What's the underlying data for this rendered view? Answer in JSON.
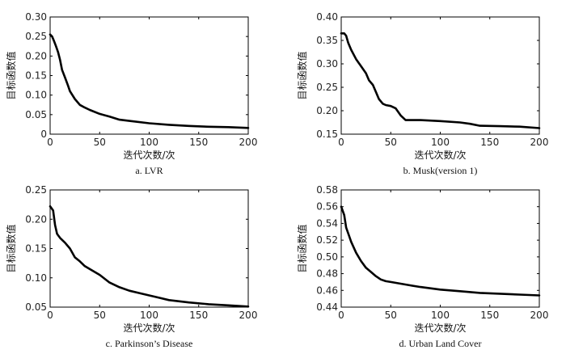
{
  "chart_data": [
    {
      "type": "line",
      "caption": "a. LVR",
      "xlabel": "迭代次数/次",
      "ylabel": "目标函数值",
      "xlim": [
        0,
        200
      ],
      "ylim": [
        0,
        0.3
      ],
      "xticks": [
        "0",
        "50",
        "100",
        "150",
        "200"
      ],
      "yticks": [
        "0",
        "0.05",
        "0.10",
        "0.15",
        "0.20",
        "0.25",
        "0.30"
      ],
      "series": [
        {
          "x": [
            0,
            2,
            4,
            6,
            8,
            10,
            12,
            15,
            18,
            20,
            25,
            30,
            35,
            40,
            50,
            60,
            70,
            80,
            100,
            120,
            140,
            160,
            180,
            200
          ],
          "values": [
            0.255,
            0.25,
            0.238,
            0.225,
            0.21,
            0.19,
            0.165,
            0.145,
            0.125,
            0.11,
            0.09,
            0.075,
            0.068,
            0.062,
            0.052,
            0.045,
            0.037,
            0.034,
            0.028,
            0.024,
            0.021,
            0.019,
            0.018,
            0.016
          ]
        }
      ]
    },
    {
      "type": "line",
      "caption": "b. Musk(version 1)",
      "xlabel": "迭代次数/次",
      "ylabel": "目标函数值",
      "xlim": [
        0,
        200
      ],
      "ylim": [
        0.15,
        0.4
      ],
      "xticks": [
        "0",
        "50",
        "100",
        "150",
        "200"
      ],
      "yticks": [
        "0.15",
        "0.20",
        "0.25",
        "0.30",
        "0.35",
        "0.40"
      ],
      "series": [
        {
          "x": [
            0,
            3,
            5,
            7,
            10,
            15,
            20,
            25,
            28,
            32,
            35,
            38,
            42,
            45,
            50,
            55,
            60,
            65,
            80,
            100,
            120,
            130,
            140,
            160,
            180,
            200
          ],
          "values": [
            0.365,
            0.365,
            0.36,
            0.345,
            0.33,
            0.31,
            0.295,
            0.28,
            0.265,
            0.255,
            0.24,
            0.225,
            0.215,
            0.212,
            0.21,
            0.205,
            0.19,
            0.18,
            0.18,
            0.178,
            0.175,
            0.172,
            0.168,
            0.167,
            0.166,
            0.163
          ]
        }
      ]
    },
    {
      "type": "line",
      "caption": "c. Parkinson’s Disease",
      "xlabel": "迭代次数/次",
      "ylabel": "目标函数值",
      "xlim": [
        0,
        200
      ],
      "ylim": [
        0.05,
        0.25
      ],
      "xticks": [
        "0",
        "50",
        "100",
        "150",
        "200"
      ],
      "yticks": [
        "0.05",
        "0.10",
        "0.15",
        "0.20",
        "0.25"
      ],
      "series": [
        {
          "x": [
            0,
            3,
            5,
            7,
            10,
            15,
            20,
            25,
            30,
            35,
            40,
            50,
            60,
            70,
            80,
            90,
            100,
            110,
            120,
            140,
            160,
            180,
            200
          ],
          "values": [
            0.222,
            0.215,
            0.19,
            0.175,
            0.168,
            0.16,
            0.15,
            0.135,
            0.128,
            0.12,
            0.115,
            0.105,
            0.092,
            0.084,
            0.078,
            0.074,
            0.07,
            0.066,
            0.062,
            0.058,
            0.055,
            0.053,
            0.051
          ]
        }
      ]
    },
    {
      "type": "line",
      "caption": "d. Urban Land Cover",
      "xlabel": "迭代次数/次",
      "ylabel": "目标函数值",
      "xlim": [
        0,
        200
      ],
      "ylim": [
        0.44,
        0.58
      ],
      "xticks": [
        "0",
        "50",
        "100",
        "150",
        "200"
      ],
      "yticks": [
        "0.44",
        "0.46",
        "0.48",
        "0.50",
        "0.52",
        "0.54",
        "0.56",
        "0.58"
      ],
      "series": [
        {
          "x": [
            0,
            3,
            5,
            8,
            10,
            15,
            20,
            25,
            30,
            35,
            40,
            45,
            50,
            60,
            70,
            80,
            100,
            120,
            140,
            160,
            180,
            200
          ],
          "values": [
            0.56,
            0.55,
            0.535,
            0.525,
            0.518,
            0.505,
            0.495,
            0.487,
            0.482,
            0.477,
            0.473,
            0.471,
            0.47,
            0.468,
            0.466,
            0.464,
            0.461,
            0.459,
            0.457,
            0.456,
            0.455,
            0.454
          ]
        }
      ]
    }
  ]
}
